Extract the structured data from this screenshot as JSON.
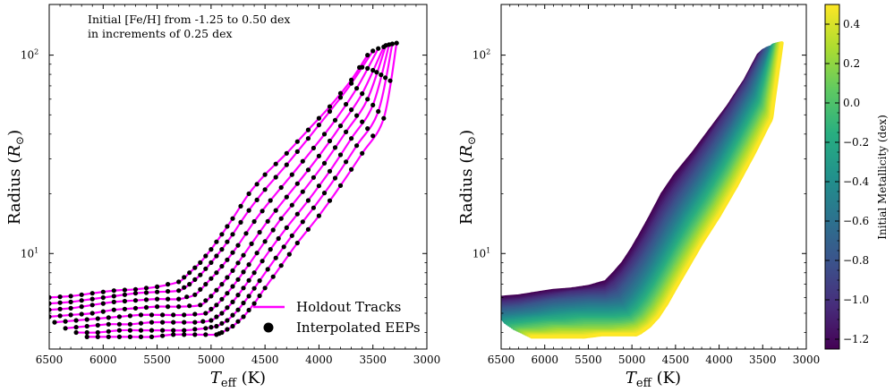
{
  "chart_data": [
    {
      "type": "line",
      "panel": "left",
      "xlabel_main": "T",
      "xlabel_sub": "eff",
      "xlabel_unit": " (K)",
      "ylabel_main": "Radius (",
      "ylabel_sym": "R",
      "ylabel_sub": "⊙",
      "ylabel_end": ")",
      "xlim": [
        6500,
        3000
      ],
      "ylim": [
        3.3,
        180
      ],
      "yscale": "log",
      "x_ticks": [
        "6500",
        "6000",
        "5500",
        "5000",
        "4500",
        "4000",
        "3500",
        "3000"
      ],
      "y_ticks": [
        "10^1",
        "10^2"
      ],
      "annotation_line1": "Initial [Fe/H] from -1.25 to 0.50 dex",
      "annotation_line2": "in increments of 0.25 dex",
      "legend_position": "lower-right",
      "legend": [
        {
          "label": "Holdout Tracks",
          "color": "#ff00ff",
          "kind": "line"
        },
        {
          "label": "Interpolated EEPs",
          "color": "#000000",
          "kind": "dot"
        }
      ],
      "series": [
        {
          "feh": -1.25,
          "teff": [
            6500,
            6300,
            6100,
            5900,
            5700,
            5500,
            5300,
            5200,
            5100,
            5000,
            4900,
            4800,
            4650,
            4500,
            4300,
            4100,
            3900,
            3700,
            3550
          ],
          "radius": [
            6.0,
            6.1,
            6.3,
            6.5,
            6.6,
            6.8,
            7.2,
            8.0,
            9.0,
            10.5,
            12.5,
            15.0,
            20.0,
            25.0,
            32.0,
            42.0,
            55.0,
            75.0,
            100.0
          ]
        },
        {
          "feh": -1.0,
          "teff": [
            6500,
            6300,
            6100,
            5900,
            5700,
            5500,
            5300,
            5200,
            5100,
            5000,
            4900,
            4800,
            4650,
            4500,
            4300,
            4100,
            3900,
            3700,
            3500
          ],
          "radius": [
            5.6,
            5.7,
            5.9,
            6.1,
            6.3,
            6.4,
            6.5,
            7.0,
            7.8,
            9.0,
            10.5,
            12.5,
            16.5,
            21.0,
            28.0,
            38.0,
            52.0,
            72.0,
            105.0
          ]
        },
        {
          "feh": -0.75,
          "teff": [
            6500,
            6300,
            6100,
            5900,
            5700,
            5500,
            5300,
            5150,
            5050,
            4950,
            4850,
            4750,
            4600,
            4450,
            4250,
            4050,
            3850,
            3650,
            3450
          ],
          "radius": [
            5.2,
            5.3,
            5.5,
            5.7,
            5.8,
            5.9,
            5.9,
            6.2,
            7.0,
            8.0,
            9.3,
            11.0,
            14.5,
            18.5,
            25.0,
            34.0,
            47.0,
            68.0,
            108.0
          ]
        },
        {
          "feh": -0.5,
          "teff": [
            6500,
            6300,
            6100,
            5900,
            5700,
            5500,
            5300,
            5100,
            5000,
            4900,
            4800,
            4700,
            4550,
            4400,
            4200,
            4000,
            3800,
            3600,
            3400
          ],
          "radius": [
            4.8,
            4.9,
            5.0,
            5.2,
            5.3,
            5.4,
            5.4,
            5.5,
            6.1,
            7.0,
            8.2,
            9.8,
            12.8,
            16.5,
            22.5,
            31.0,
            44.0,
            64.0,
            110.0
          ]
        },
        {
          "feh": -0.25,
          "teff": [
            6450,
            6250,
            6050,
            5850,
            5650,
            5450,
            5250,
            5050,
            4950,
            4850,
            4750,
            4650,
            4500,
            4350,
            4150,
            3950,
            3750,
            3550,
            3380
          ],
          "radius": [
            4.5,
            4.6,
            4.7,
            4.8,
            4.9,
            4.9,
            4.9,
            5.0,
            5.5,
            6.3,
            7.4,
            8.8,
            11.5,
            15.0,
            20.5,
            28.5,
            41.0,
            60.0,
            112.0
          ]
        },
        {
          "feh": 0.0,
          "teff": [
            6350,
            6150,
            5950,
            5750,
            5550,
            5350,
            5150,
            5000,
            4900,
            4800,
            4700,
            4600,
            4450,
            4300,
            4100,
            3900,
            3700,
            3500,
            3350
          ],
          "radius": [
            4.2,
            4.3,
            4.4,
            4.4,
            4.5,
            4.5,
            4.5,
            4.6,
            5.0,
            5.7,
            6.7,
            8.0,
            10.5,
            13.5,
            18.5,
            26.0,
            38.0,
            56.0,
            113.0
          ]
        },
        {
          "feh": 0.25,
          "teff": [
            6250,
            6050,
            5850,
            5650,
            5450,
            5250,
            5050,
            4950,
            4850,
            4750,
            4650,
            4550,
            4400,
            4250,
            4050,
            3850,
            3650,
            3450,
            3320
          ],
          "radius": [
            4.0,
            4.0,
            4.1,
            4.1,
            4.1,
            4.1,
            4.2,
            4.3,
            4.6,
            5.2,
            6.1,
            7.3,
            9.5,
            12.3,
            17.0,
            24.0,
            35.0,
            52.0,
            114.0
          ]
        },
        {
          "feh": 0.5,
          "teff": [
            6150,
            5950,
            5750,
            5550,
            5350,
            5150,
            4950,
            4900,
            4800,
            4700,
            4600,
            4500,
            4350,
            4200,
            4000,
            3800,
            3600,
            3400,
            3280
          ],
          "radius": [
            3.8,
            3.8,
            3.8,
            3.8,
            3.9,
            3.9,
            3.9,
            4.0,
            4.3,
            4.8,
            5.6,
            6.7,
            8.7,
            11.3,
            15.5,
            22.0,
            32.0,
            48.0,
            115.0
          ]
        }
      ]
    },
    {
      "type": "scatter",
      "panel": "right",
      "xlabel_main": "T",
      "xlabel_sub": "eff",
      "xlabel_unit": " (K)",
      "ylabel_main": "Radius (",
      "ylabel_sym": "R",
      "ylabel_sub": "⊙",
      "ylabel_end": ")",
      "xlim": [
        6500,
        3000
      ],
      "ylim": [
        3.3,
        180
      ],
      "yscale": "log",
      "x_ticks": [
        "6500",
        "6000",
        "5500",
        "5000",
        "4500",
        "4000",
        "3500",
        "3000"
      ],
      "y_ticks": [
        "10^1",
        "10^2"
      ],
      "colormap": "viridis",
      "colorbar_label": "Initial Metallicity (dex)",
      "colorbar_range": [
        -1.25,
        0.5
      ],
      "colorbar_ticks": [
        "0.4",
        "0.2",
        "0.0",
        "−0.2",
        "−0.4",
        "−0.6",
        "−0.8",
        "−1.0",
        "−1.2"
      ],
      "colorbar_tick_values": [
        0.4,
        0.2,
        0.0,
        -0.2,
        -0.4,
        -0.6,
        -0.8,
        -1.0,
        -1.2
      ]
    }
  ]
}
